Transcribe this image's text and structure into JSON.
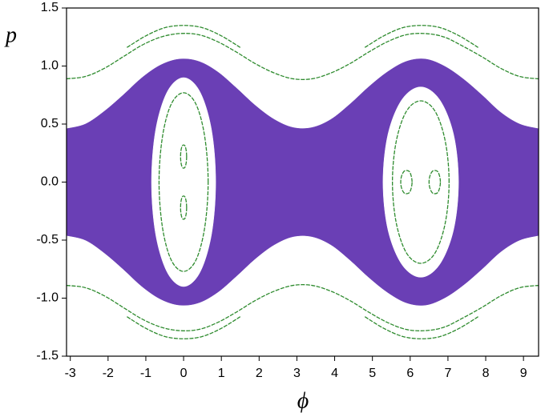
{
  "chart_data": {
    "type": "scatter",
    "xlabel": "ϕ",
    "ylabel": "p",
    "xlim": [
      -3.1,
      9.4
    ],
    "ylim": [
      -1.5,
      1.5
    ],
    "xticks": [
      -3,
      -2,
      -1,
      0,
      1,
      2,
      3,
      4,
      5,
      6,
      7,
      8,
      9
    ],
    "yticks": [
      -1.5,
      {
        "value": -1.0,
        "label": "-1.0"
      },
      -0.5,
      {
        "value": 0.0,
        "label": "0.0"
      },
      0.5,
      {
        "value": 1.0,
        "label": "1.0"
      },
      1.5
    ],
    "series": [
      {
        "color": "#6a3fb5",
        "fill": "#6a3fb5",
        "closed": false,
        "x": [
          -3.1,
          -2.6,
          -2.1,
          -1.6,
          -1.1,
          -0.6,
          -0.1,
          0.4,
          0.9,
          1.4,
          1.9,
          2.4,
          2.9,
          3.4,
          3.9,
          4.4,
          4.9,
          5.4,
          5.9,
          6.4,
          6.9,
          7.4,
          7.9,
          8.4,
          8.9,
          9.4
        ],
        "values": [
          0.46,
          0.5,
          0.61,
          0.75,
          0.9,
          1.01,
          1.06,
          1.04,
          0.95,
          0.81,
          0.66,
          0.54,
          0.47,
          0.47,
          0.54,
          0.67,
          0.82,
          0.95,
          1.04,
          1.06,
          1.0,
          0.89,
          0.75,
          0.6,
          0.5,
          0.46
        ],
        "lower": [
          -0.46,
          -0.5,
          -0.61,
          -0.75,
          -0.9,
          -1.01,
          -1.06,
          -1.04,
          -0.95,
          -0.81,
          -0.66,
          -0.54,
          -0.47,
          -0.47,
          -0.54,
          -0.67,
          -0.82,
          -0.95,
          -1.04,
          -1.06,
          -1.0,
          -0.89,
          -0.75,
          -0.6,
          -0.5,
          -0.46
        ]
      },
      {
        "color": "#ffffff",
        "fill": "#ffffff",
        "closed": true,
        "x": [
          0.85,
          0.74,
          0.43,
          0,
          -0.43,
          -0.74,
          -0.85,
          -0.74,
          -0.43,
          0,
          0.43,
          0.74
        ],
        "values": [
          0,
          0.45,
          0.78,
          0.9,
          0.78,
          0.45,
          0,
          -0.45,
          -0.78,
          -0.9,
          -0.78,
          -0.45
        ]
      },
      {
        "color": "#ffffff",
        "fill": "#ffffff",
        "closed": true,
        "x": [
          7.28,
          7.15,
          6.78,
          6.28,
          5.78,
          5.41,
          5.28,
          5.41,
          5.78,
          6.28,
          6.78,
          7.15
        ],
        "values": [
          0,
          0.41,
          0.71,
          0.82,
          0.71,
          0.41,
          0,
          -0.41,
          -0.71,
          -0.82,
          -0.71,
          -0.41
        ]
      },
      {
        "color": "#2e8b2e",
        "closed": true,
        "x": [
          0.65,
          0.56,
          0.33,
          0,
          -0.33,
          -0.56,
          -0.65,
          -0.56,
          -0.33,
          0,
          0.33,
          0.56
        ],
        "values": [
          0,
          0.39,
          0.67,
          0.77,
          0.67,
          0.39,
          0,
          -0.39,
          -0.67,
          -0.77,
          -0.67,
          -0.39
        ]
      },
      {
        "color": "#2e8b2e",
        "closed": true,
        "x": [
          7.03,
          6.93,
          6.66,
          6.28,
          5.9,
          5.63,
          5.53,
          5.63,
          5.9,
          6.28,
          6.66,
          6.93
        ],
        "values": [
          0,
          0.35,
          0.61,
          0.7,
          0.61,
          0.35,
          0,
          -0.35,
          -0.61,
          -0.7,
          -0.61,
          -0.35
        ]
      },
      {
        "color": "#2e8b2e",
        "closed": true,
        "x": [
          0.08,
          0.07,
          0.04,
          0,
          -0.04,
          -0.07,
          -0.08,
          -0.07,
          -0.04,
          0,
          0.04,
          0.07
        ],
        "values": [
          0.22,
          0.27,
          0.31,
          0.32,
          0.31,
          0.27,
          0.22,
          0.17,
          0.13,
          0.12,
          0.13,
          0.17
        ]
      },
      {
        "color": "#2e8b2e",
        "closed": true,
        "x": [
          0.08,
          0.07,
          0.04,
          0,
          -0.04,
          -0.07,
          -0.08,
          -0.07,
          -0.04,
          0,
          0.04,
          0.07
        ],
        "values": [
          -0.22,
          -0.17,
          -0.13,
          -0.12,
          -0.13,
          -0.17,
          -0.22,
          -0.27,
          -0.31,
          -0.32,
          -0.31,
          -0.27
        ]
      },
      {
        "color": "#2e8b2e",
        "closed": true,
        "x": [
          6.05,
          6.03,
          5.98,
          5.9,
          5.83,
          5.77,
          5.75,
          5.77,
          5.83,
          5.9,
          5.98,
          6.03
        ],
        "values": [
          0,
          0.05,
          0.09,
          0.1,
          0.09,
          0.05,
          0,
          -0.05,
          -0.09,
          -0.1,
          -0.09,
          -0.05
        ]
      },
      {
        "color": "#2e8b2e",
        "closed": true,
        "x": [
          6.8,
          6.78,
          6.73,
          6.65,
          6.58,
          6.52,
          6.5,
          6.52,
          6.58,
          6.65,
          6.73,
          6.78
        ],
        "values": [
          0,
          0.05,
          0.09,
          0.1,
          0.09,
          0.05,
          0,
          -0.05,
          -0.09,
          -0.1,
          -0.09,
          -0.05
        ]
      },
      {
        "color": "#2e8b2e",
        "closed": false,
        "x": [
          -3.1,
          -2.6,
          -2.1,
          -1.6,
          -1.1,
          -0.6,
          -0.1,
          0.4,
          0.9,
          1.4,
          1.9,
          2.4,
          2.9,
          3.4,
          3.9,
          4.4,
          4.9,
          5.4,
          5.9,
          6.4,
          6.9,
          7.4,
          7.9,
          8.4,
          8.9,
          9.4
        ],
        "values": [
          0.89,
          0.91,
          0.98,
          1.08,
          1.18,
          1.25,
          1.28,
          1.27,
          1.21,
          1.12,
          1.02,
          0.94,
          0.89,
          0.89,
          0.94,
          1.02,
          1.12,
          1.21,
          1.27,
          1.28,
          1.25,
          1.17,
          1.08,
          0.98,
          0.91,
          0.89
        ]
      },
      {
        "color": "#2e8b2e",
        "closed": false,
        "x": [
          -3.1,
          -2.6,
          -2.1,
          -1.6,
          -1.1,
          -0.6,
          -0.1,
          0.4,
          0.9,
          1.4,
          1.9,
          2.4,
          2.9,
          3.4,
          3.9,
          4.4,
          4.9,
          5.4,
          5.9,
          6.4,
          6.9,
          7.4,
          7.9,
          8.4,
          8.9,
          9.4
        ],
        "values": [
          -0.89,
          -0.91,
          -0.98,
          -1.08,
          -1.18,
          -1.25,
          -1.28,
          -1.27,
          -1.21,
          -1.12,
          -1.02,
          -0.94,
          -0.89,
          -0.89,
          -0.94,
          -1.02,
          -1.12,
          -1.21,
          -1.27,
          -1.28,
          -1.25,
          -1.17,
          -1.08,
          -0.98,
          -0.91,
          -0.89
        ]
      },
      {
        "color": "#2e8b2e",
        "closed": false,
        "x": [
          -1.5,
          -1,
          -0.5,
          0,
          0.5,
          1,
          1.5
        ],
        "values": [
          1.16,
          1.26,
          1.33,
          1.35,
          1.33,
          1.26,
          1.16
        ]
      },
      {
        "color": "#2e8b2e",
        "closed": false,
        "x": [
          4.8,
          5.3,
          5.8,
          6.3,
          6.8,
          7.3,
          7.8
        ],
        "values": [
          1.16,
          1.26,
          1.33,
          1.35,
          1.33,
          1.26,
          1.16
        ]
      },
      {
        "color": "#2e8b2e",
        "closed": false,
        "x": [
          -1.5,
          -1,
          -0.5,
          0,
          0.5,
          1,
          1.5
        ],
        "values": [
          -1.16,
          -1.26,
          -1.33,
          -1.35,
          -1.33,
          -1.26,
          -1.16
        ]
      },
      {
        "color": "#2e8b2e",
        "closed": false,
        "x": [
          4.8,
          5.3,
          5.8,
          6.3,
          6.8,
          7.3,
          7.8
        ],
        "values": [
          -1.16,
          -1.26,
          -1.33,
          -1.35,
          -1.33,
          -1.26,
          -1.16
        ]
      }
    ]
  }
}
